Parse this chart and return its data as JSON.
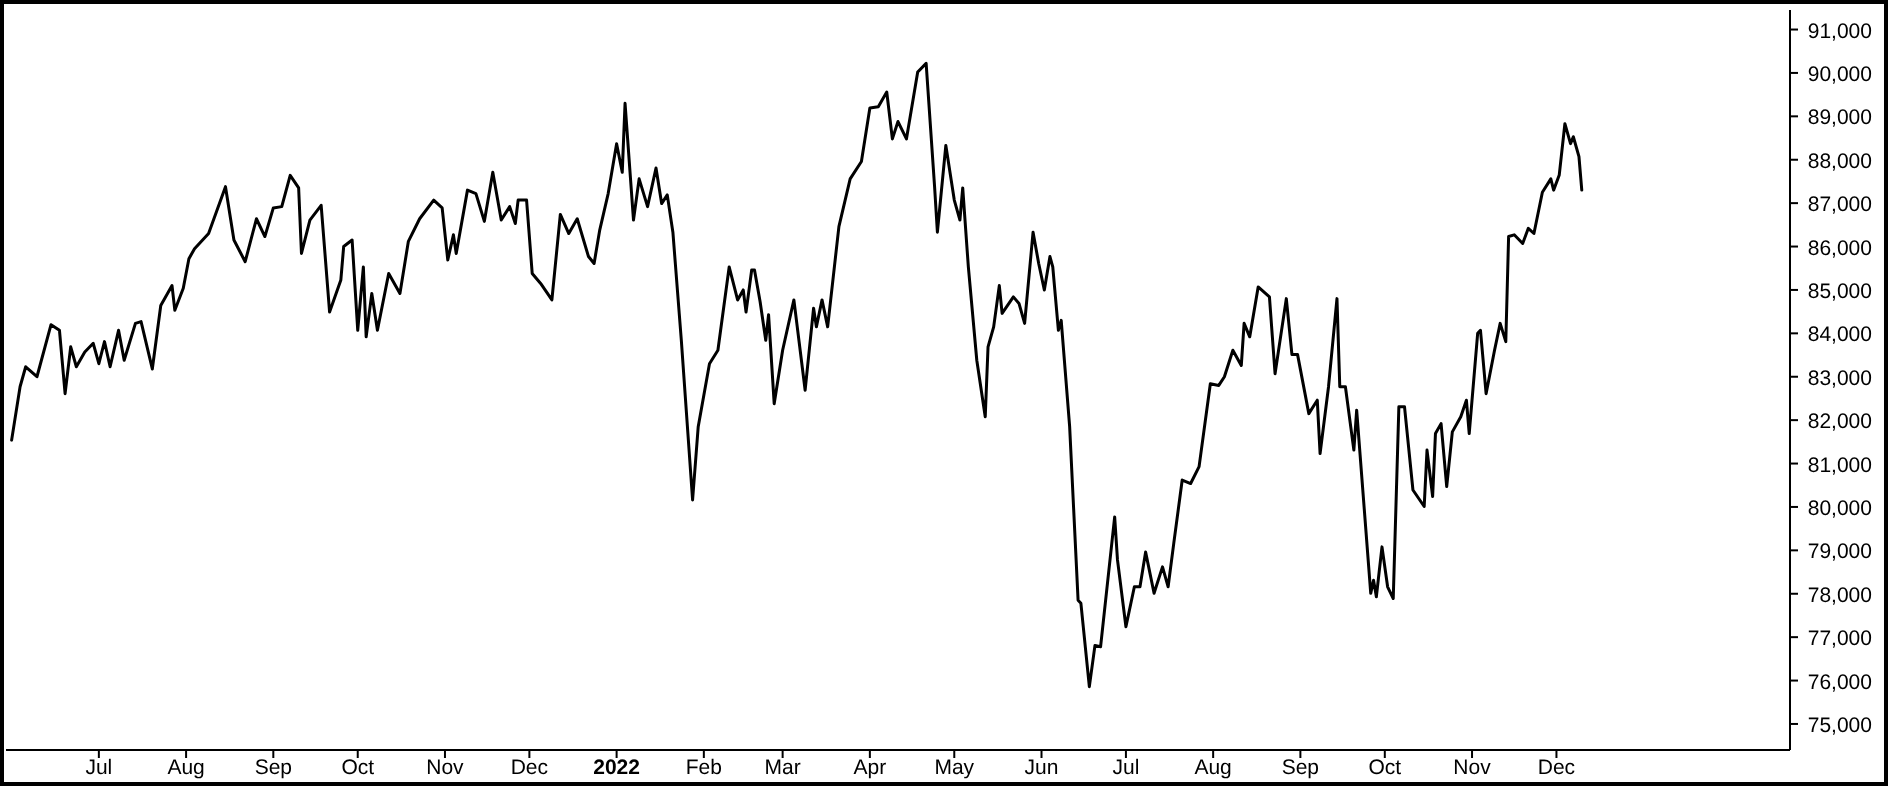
{
  "chart_data": {
    "type": "line",
    "grid": false,
    "xlim": [
      "2021-05-29",
      "2023-02-22"
    ],
    "xticks": [
      {
        "value": "2021-07-01",
        "label": "Jul"
      },
      {
        "value": "2021-08-01",
        "label": "Aug"
      },
      {
        "value": "2021-09-01",
        "label": "Sep"
      },
      {
        "value": "2021-10-01",
        "label": "Oct"
      },
      {
        "value": "2021-11-01",
        "label": "Nov"
      },
      {
        "value": "2021-12-01",
        "label": "Dec"
      },
      {
        "value": "2022-01-01",
        "label": "2022"
      },
      {
        "value": "2022-02-01",
        "label": "Feb"
      },
      {
        "value": "2022-03-01",
        "label": "Mar"
      },
      {
        "value": "2022-04-01",
        "label": "Apr"
      },
      {
        "value": "2022-05-01",
        "label": "May"
      },
      {
        "value": "2022-06-01",
        "label": "Jun"
      },
      {
        "value": "2022-07-01",
        "label": "Jul"
      },
      {
        "value": "2022-08-01",
        "label": "Aug"
      },
      {
        "value": "2022-09-01",
        "label": "Sep"
      },
      {
        "value": "2022-10-01",
        "label": "Oct"
      },
      {
        "value": "2022-11-01",
        "label": "Nov"
      },
      {
        "value": "2022-12-01",
        "label": "Dec"
      }
    ],
    "ylim": [
      74400,
      91450
    ],
    "yticks": [
      {
        "value": 75000,
        "label": "75,000"
      },
      {
        "value": 76000,
        "label": "76,000"
      },
      {
        "value": 77000,
        "label": "77,000"
      },
      {
        "value": 78000,
        "label": "78,000"
      },
      {
        "value": 79000,
        "label": "79,000"
      },
      {
        "value": 80000,
        "label": "80,000"
      },
      {
        "value": 81000,
        "label": "81,000"
      },
      {
        "value": 82000,
        "label": "82,000"
      },
      {
        "value": 83000,
        "label": "83,000"
      },
      {
        "value": 84000,
        "label": "84,000"
      },
      {
        "value": 85000,
        "label": "85,000"
      },
      {
        "value": 86000,
        "label": "86,000"
      },
      {
        "value": 87000,
        "label": "87,000"
      },
      {
        "value": 88000,
        "label": "88,000"
      },
      {
        "value": 89000,
        "label": "89,000"
      },
      {
        "value": 90000,
        "label": "90,000"
      },
      {
        "value": 91000,
        "label": "91,000"
      }
    ],
    "line_style": "solid",
    "marker": "none",
    "x": [
      "2021-05-31",
      "2021-06-03",
      "2021-06-05",
      "2021-06-09",
      "2021-06-14",
      "2021-06-17",
      "2021-06-19",
      "2021-06-21",
      "2021-06-23",
      "2021-06-26",
      "2021-06-29",
      "2021-07-01",
      "2021-07-03",
      "2021-07-05",
      "2021-07-08",
      "2021-07-10",
      "2021-07-14",
      "2021-07-16",
      "2021-07-20",
      "2021-07-23",
      "2021-07-27",
      "2021-07-28",
      "2021-07-31",
      "2021-08-02",
      "2021-08-04",
      "2021-08-09",
      "2021-08-15",
      "2021-08-18",
      "2021-08-22",
      "2021-08-26",
      "2021-08-29",
      "2021-09-01",
      "2021-09-04",
      "2021-09-07",
      "2021-09-10",
      "2021-09-11",
      "2021-09-14",
      "2021-09-18",
      "2021-09-21",
      "2021-09-25",
      "2021-09-26",
      "2021-09-29",
      "2021-10-01",
      "2021-10-03",
      "2021-10-04",
      "2021-10-06",
      "2021-10-08",
      "2021-10-12",
      "2021-10-16",
      "2021-10-19",
      "2021-10-23",
      "2021-10-28",
      "2021-10-31",
      "2021-11-02",
      "2021-11-04",
      "2021-11-05",
      "2021-11-09",
      "2021-11-12",
      "2021-11-15",
      "2021-11-18",
      "2021-11-21",
      "2021-11-24",
      "2021-11-26",
      "2021-11-27",
      "2021-11-30",
      "2021-12-02",
      "2021-12-05",
      "2021-12-09",
      "2021-12-12",
      "2021-12-15",
      "2021-12-18",
      "2021-12-22",
      "2021-12-24",
      "2021-12-26",
      "2021-12-29",
      "2022-01-01",
      "2022-01-03",
      "2022-01-04",
      "2022-01-07",
      "2022-01-09",
      "2022-01-12",
      "2022-01-15",
      "2022-01-17",
      "2022-01-19",
      "2022-01-21",
      "2022-01-24",
      "2022-01-28",
      "2022-01-30",
      "2022-02-03",
      "2022-02-06",
      "2022-02-10",
      "2022-02-13",
      "2022-02-15",
      "2022-02-16",
      "2022-02-18",
      "2022-02-19",
      "2022-02-21",
      "2022-02-23",
      "2022-02-24",
      "2022-02-26",
      "2022-03-01",
      "2022-03-05",
      "2022-03-09",
      "2022-03-12",
      "2022-03-13",
      "2022-03-15",
      "2022-03-17",
      "2022-03-21",
      "2022-03-25",
      "2022-03-29",
      "2022-04-01",
      "2022-04-04",
      "2022-04-07",
      "2022-04-09",
      "2022-04-11",
      "2022-04-14",
      "2022-04-18",
      "2022-04-21",
      "2022-04-24",
      "2022-04-25",
      "2022-04-28",
      "2022-05-01",
      "2022-05-03",
      "2022-05-04",
      "2022-05-06",
      "2022-05-09",
      "2022-05-12",
      "2022-05-13",
      "2022-05-15",
      "2022-05-17",
      "2022-05-18",
      "2022-05-22",
      "2022-05-24",
      "2022-05-26",
      "2022-05-29",
      "2022-05-31",
      "2022-06-02",
      "2022-06-04",
      "2022-06-05",
      "2022-06-07",
      "2022-06-08",
      "2022-06-11",
      "2022-06-14",
      "2022-06-15",
      "2022-06-18",
      "2022-06-20",
      "2022-06-22",
      "2022-06-27",
      "2022-06-28",
      "2022-07-01",
      "2022-07-04",
      "2022-07-06",
      "2022-07-08",
      "2022-07-11",
      "2022-07-14",
      "2022-07-16",
      "2022-07-18",
      "2022-07-21",
      "2022-07-24",
      "2022-07-27",
      "2022-07-31",
      "2022-08-03",
      "2022-08-05",
      "2022-08-08",
      "2022-08-11",
      "2022-08-12",
      "2022-08-14",
      "2022-08-17",
      "2022-08-21",
      "2022-08-23",
      "2022-08-27",
      "2022-08-29",
      "2022-08-31",
      "2022-09-04",
      "2022-09-07",
      "2022-09-08",
      "2022-09-11",
      "2022-09-14",
      "2022-09-15",
      "2022-09-17",
      "2022-09-20",
      "2022-09-21",
      "2022-09-26",
      "2022-09-27",
      "2022-09-28",
      "2022-09-30",
      "2022-10-02",
      "2022-10-04",
      "2022-10-06",
      "2022-10-08",
      "2022-10-11",
      "2022-10-15",
      "2022-10-16",
      "2022-10-18",
      "2022-10-19",
      "2022-10-21",
      "2022-10-23",
      "2022-10-25",
      "2022-10-28",
      "2022-10-30",
      "2022-10-31",
      "2022-11-03",
      "2022-11-04",
      "2022-11-06",
      "2022-11-09",
      "2022-11-11",
      "2022-11-13",
      "2022-11-14",
      "2022-11-16",
      "2022-11-19",
      "2022-11-21",
      "2022-11-23",
      "2022-11-26",
      "2022-11-29",
      "2022-11-30",
      "2022-12-02",
      "2022-12-04",
      "2022-12-06",
      "2022-12-07",
      "2022-12-09",
      "2022-12-10"
    ],
    "series": [
      {
        "color": "#000000",
        "values": [
          81540,
          82770,
          83230,
          83000,
          84200,
          84070,
          82610,
          83690,
          83230,
          83570,
          83770,
          83300,
          83810,
          83230,
          84070,
          83380,
          84230,
          84270,
          83180,
          84640,
          85100,
          84530,
          85040,
          85720,
          85950,
          86300,
          87380,
          86150,
          85650,
          86640,
          86230,
          86890,
          86920,
          87640,
          87350,
          85840,
          86610,
          86950,
          84490,
          85230,
          86000,
          86150,
          84070,
          85530,
          83920,
          84920,
          84070,
          85380,
          84920,
          86120,
          86640,
          87070,
          86890,
          85690,
          86270,
          85840,
          87300,
          87220,
          86580,
          87710,
          86610,
          86920,
          86530,
          87070,
          87070,
          85380,
          85150,
          84770,
          86740,
          86300,
          86640,
          85770,
          85610,
          86380,
          87220,
          88370,
          87710,
          89300,
          86610,
          87560,
          86920,
          87810,
          86990,
          87190,
          86330,
          83840,
          80160,
          81850,
          83300,
          83610,
          85530,
          84770,
          85000,
          84490,
          85460,
          85460,
          84730,
          83840,
          84430,
          82380,
          83610,
          84770,
          82690,
          84580,
          84150,
          84770,
          84150,
          86460,
          87560,
          87960,
          89190,
          89220,
          89560,
          88480,
          88880,
          88480,
          90020,
          90220,
          87380,
          86330,
          88330,
          87070,
          86610,
          87350,
          85530,
          83380,
          82080,
          83690,
          84150,
          85100,
          84460,
          84840,
          84690,
          84230,
          86330,
          85610,
          85000,
          85770,
          85530,
          84070,
          84300,
          81850,
          77850,
          77780,
          75860,
          76810,
          76780,
          79770,
          78780,
          77240,
          78160,
          78160,
          78960,
          78010,
          78620,
          78160,
          79160,
          80620,
          80540,
          80930,
          82840,
          82800,
          83000,
          83610,
          83260,
          84230,
          83920,
          85070,
          84840,
          83070,
          84800,
          83510,
          83510,
          82150,
          82460,
          81230,
          82770,
          84800,
          82770,
          82770,
          81310,
          82230,
          78010,
          78310,
          77930,
          79080,
          78160,
          77890,
          82310,
          82310,
          80390,
          80010,
          81310,
          80240,
          81690,
          81920,
          80470,
          81730,
          82080,
          82460,
          81690,
          84000,
          84070,
          82610,
          83610,
          84230,
          83810,
          86230,
          86270,
          86070,
          86420,
          86300,
          87250,
          87560,
          87300,
          87650,
          88830,
          88370,
          88530,
          88070,
          87300
        ]
      }
    ]
  }
}
